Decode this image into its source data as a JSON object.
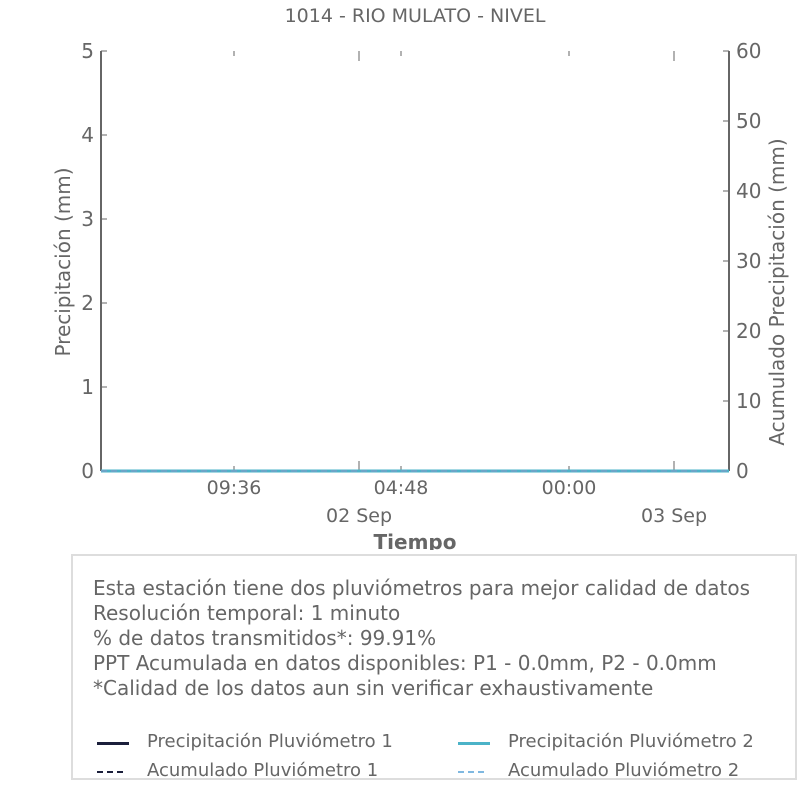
{
  "chart_data": {
    "type": "line",
    "title": "1014 - RIO MULATO - NIVEL",
    "xlabel": "Tiempo",
    "ylabel_left": "Precipitación (mm)",
    "ylabel_right": "Acumulado Precipitación (mm)",
    "ylim_left": [
      0,
      5
    ],
    "ylim_right": [
      0,
      60
    ],
    "yticks_left": [
      "0",
      "1",
      "2",
      "3",
      "4",
      "5"
    ],
    "yticks_right": [
      "0",
      "10",
      "20",
      "30",
      "40",
      "50",
      "60"
    ],
    "xticks_major": [
      "09:36",
      "04:48",
      "00:00"
    ],
    "xticks_date": [
      "02 Sep",
      "03 Sep"
    ],
    "grid": false,
    "series": [
      {
        "name": "Precipitación Pluviómetro 1",
        "axis": "left",
        "style": "solid",
        "color": "#1b1f3b",
        "values_constant": 0
      },
      {
        "name": "Precipitación Pluviómetro 2",
        "axis": "left",
        "style": "solid",
        "color": "#4bb3c8",
        "values_constant": 0
      },
      {
        "name": "Acumulado Pluviómetro 1",
        "axis": "right",
        "style": "dashed",
        "color": "#1b1f3b",
        "values_constant": 0
      },
      {
        "name": "Acumulado Pluviómetro 2",
        "axis": "right",
        "style": "dashed",
        "color": "#7fb8e0",
        "values_constant": 0
      }
    ]
  },
  "info": {
    "line1": "Esta estación tiene dos pluviómetros para mejor calidad de datos",
    "line2": "Resolución temporal: 1 minuto",
    "line3": "% de datos transmitidos*: 99.91%",
    "line4": "PPT Acumulada en datos disponibles: P1 - 0.0mm, P2 - 0.0mm",
    "line5": "*Calidad de los datos aun sin verificar exhaustivamente"
  },
  "legend": {
    "p1": "Precipitación Pluviómetro 1",
    "p2": "Precipitación Pluviómetro 2",
    "a1": "Acumulado Pluviómetro 1",
    "a2": "Acumulado Pluviómetro 2"
  },
  "colors": {
    "axis": "#666666",
    "p1": "#1b1f3b",
    "p2": "#4bb3c8",
    "a2": "#7fb8e0"
  }
}
